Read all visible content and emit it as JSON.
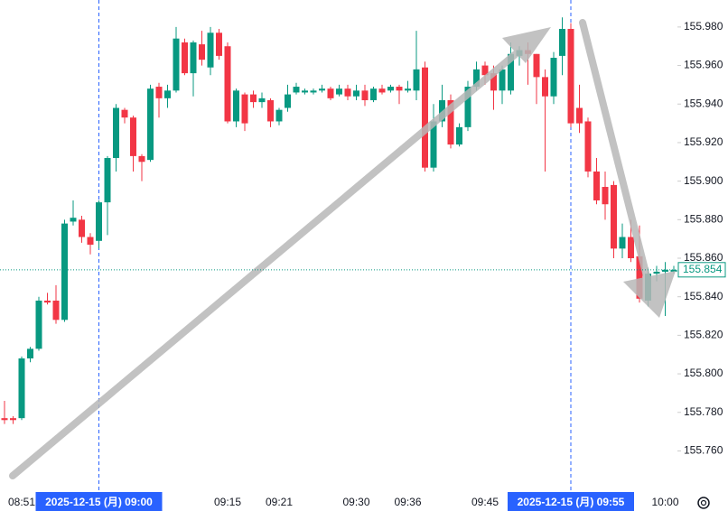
{
  "chart_data": {
    "type": "candlestick",
    "categories": [
      null,
      null,
      "08:51",
      null,
      null,
      null,
      null,
      null,
      null,
      null,
      null,
      "2025-12-15 (月)  09:00",
      null,
      null,
      null,
      null,
      null,
      null,
      null,
      null,
      null,
      null,
      null,
      null,
      null,
      null,
      "09:15",
      null,
      null,
      null,
      null,
      null,
      "09:21",
      null,
      null,
      null,
      null,
      null,
      null,
      null,
      null,
      "09:30",
      null,
      null,
      null,
      null,
      null,
      "09:36",
      null,
      null,
      null,
      null,
      null,
      null,
      null,
      null,
      "09:45",
      null,
      null,
      null,
      null,
      null,
      null,
      null,
      null,
      null,
      "2025-12-15 (月)  09:55",
      null,
      null,
      null,
      null,
      null,
      null,
      null,
      null,
      null,
      null,
      "10:00",
      null
    ],
    "highlight": [
      11,
      66
    ],
    "open": [
      155.777,
      155.777,
      155.777,
      155.808,
      155.813,
      155.838,
      155.838,
      155.828,
      155.879,
      155.88,
      155.871,
      155.869,
      155.889,
      155.912,
      155.937,
      155.933,
      155.913,
      155.911,
      155.949,
      155.943,
      155.947,
      155.972,
      155.956,
      155.971,
      155.959,
      155.977,
      155.97,
      155.931,
      155.945,
      155.945,
      155.941,
      155.942,
      155.931,
      155.938,
      155.946,
      155.946,
      155.946,
      155.947,
      155.948,
      155.945,
      155.948,
      155.944,
      155.947,
      155.942,
      155.948,
      155.947,
      155.949,
      155.947,
      155.947,
      155.959,
      155.907,
      155.931,
      155.942,
      155.919,
      155.928,
      155.949,
      155.96,
      155.956,
      155.947,
      155.947,
      155.965,
      155.968,
      155.966,
      155.954,
      155.944,
      155.965,
      155.979,
      155.938,
      155.931,
      155.905,
      155.897,
      155.898,
      155.865,
      155.871,
      155.861,
      155.838,
      155.852,
      155.853,
      155.853
    ],
    "high": [
      155.786,
      155.778,
      155.809,
      155.814,
      155.84,
      155.842,
      155.846,
      155.88,
      155.89,
      155.882,
      155.873,
      155.89,
      155.913,
      155.94,
      155.938,
      155.934,
      155.914,
      155.95,
      155.951,
      155.95,
      155.98,
      155.974,
      155.973,
      155.978,
      155.98,
      155.979,
      155.972,
      155.948,
      155.946,
      155.947,
      155.946,
      155.943,
      155.938,
      155.95,
      155.951,
      155.948,
      155.948,
      155.95,
      155.949,
      155.95,
      155.95,
      155.95,
      155.95,
      155.949,
      155.95,
      155.95,
      155.95,
      155.952,
      155.978,
      155.962,
      155.94,
      155.95,
      155.945,
      155.93,
      155.952,
      155.962,
      155.962,
      155.96,
      155.96,
      155.972,
      155.97,
      155.972,
      155.966,
      155.958,
      155.967,
      155.985,
      155.982,
      155.95,
      155.933,
      155.912,
      155.905,
      155.9,
      155.878,
      155.88,
      155.877,
      155.855,
      155.856,
      155.858,
      155.856
    ],
    "low": [
      155.774,
      155.774,
      155.776,
      155.806,
      155.812,
      155.836,
      155.826,
      155.827,
      155.877,
      155.868,
      155.862,
      155.865,
      155.872,
      155.905,
      155.93,
      155.905,
      155.9,
      155.91,
      155.933,
      155.938,
      155.946,
      155.955,
      155.944,
      155.96,
      155.955,
      155.963,
      155.93,
      155.928,
      155.926,
      155.938,
      155.938,
      155.928,
      155.929,
      155.936,
      155.945,
      155.945,
      155.945,
      155.946,
      155.942,
      155.944,
      155.942,
      155.942,
      155.939,
      155.941,
      155.945,
      155.946,
      155.94,
      155.946,
      155.942,
      155.905,
      155.905,
      155.928,
      155.917,
      155.918,
      155.926,
      155.947,
      155.95,
      155.937,
      155.94,
      155.945,
      155.96,
      155.95,
      155.94,
      155.905,
      155.94,
      155.955,
      155.928,
      155.925,
      155.902,
      155.888,
      155.88,
      155.86,
      155.86,
      155.858,
      155.837,
      155.835,
      155.848,
      155.83,
      155.852
    ],
    "close": [
      155.776,
      155.776,
      155.808,
      155.813,
      155.838,
      155.837,
      155.828,
      155.878,
      155.881,
      155.871,
      155.867,
      155.889,
      155.912,
      155.938,
      155.933,
      155.913,
      155.91,
      155.948,
      155.943,
      155.947,
      155.974,
      155.956,
      155.972,
      155.963,
      155.977,
      155.965,
      155.931,
      155.947,
      155.93,
      155.941,
      155.943,
      155.931,
      155.937,
      155.945,
      155.949,
      155.947,
      155.947,
      155.948,
      155.943,
      155.948,
      155.944,
      155.947,
      155.942,
      155.948,
      155.946,
      155.949,
      155.947,
      155.948,
      155.958,
      155.907,
      155.931,
      155.942,
      155.919,
      155.928,
      155.949,
      155.958,
      155.955,
      155.947,
      155.958,
      155.966,
      155.968,
      155.966,
      155.954,
      155.944,
      155.964,
      155.979,
      155.93,
      155.93,
      155.905,
      155.89,
      155.888,
      155.865,
      155.871,
      155.86,
      155.839,
      155.852,
      155.853,
      155.854,
      155.854
    ],
    "up_color": "#089981",
    "down_color": "#f23645",
    "last_price": 155.854,
    "ylim": [
      155.741,
      155.994
    ],
    "yticks": [
      {
        "value": 155.76,
        "label": "155.760"
      },
      {
        "value": 155.78,
        "label": "155.780"
      },
      {
        "value": 155.8,
        "label": "155.800"
      },
      {
        "value": 155.82,
        "label": "155.820"
      },
      {
        "value": 155.84,
        "label": "155.840"
      },
      {
        "value": 155.86,
        "label": "155.860"
      },
      {
        "value": 155.88,
        "label": "155.880"
      },
      {
        "value": 155.9,
        "label": "155.900"
      },
      {
        "value": 155.92,
        "label": "155.920"
      },
      {
        "value": 155.94,
        "label": "155.940"
      },
      {
        "value": 155.96,
        "label": "155.960"
      },
      {
        "value": 155.98,
        "label": "155.980"
      }
    ]
  }
}
